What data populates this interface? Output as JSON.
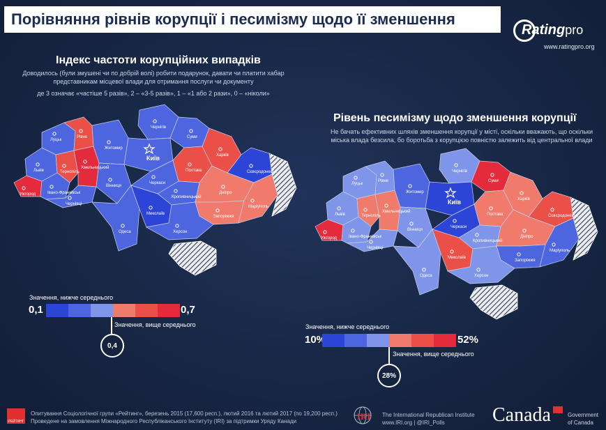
{
  "title": "Порівняння рівнів корупції і песимізму щодо її зменшення",
  "logo": {
    "brand": "Rating",
    "brand_suffix": "pro",
    "url": "www.ratingpro.org"
  },
  "left": {
    "heading": "Індекс частоти корупційних випадків",
    "subtitle": "Доводилось (були змушені чи по добрій волі) робити подарунок, давати чи платити хабар представникам місцевої влади для отримання послуги чи документу",
    "scale_note": "де 3 означає «частіше 5 разів», 2 – «3-5 разів», 1 – «1 або 2 рази», 0 – «ніколи»",
    "legend": {
      "below_label": "Значення, нижче середнього",
      "above_label": "Значення, вище середнього",
      "min": "0,1",
      "max": "0,7",
      "mid": "0,4",
      "colors": [
        "#2c45d6",
        "#4d66e0",
        "#7f95ea",
        "#f07a6c",
        "#ea5048",
        "#e32b3c"
      ]
    },
    "regions": [
      {
        "name": "Луцьк",
        "value": 1
      },
      {
        "name": "Рівне",
        "value": 4
      },
      {
        "name": "Житомир",
        "value": 1
      },
      {
        "name": "Чернігів",
        "value": 1
      },
      {
        "name": "Суми",
        "value": 1
      },
      {
        "name": "Львів",
        "value": 1
      },
      {
        "name": "Тернопіль",
        "value": 4
      },
      {
        "name": "Хмельницький",
        "value": 5
      },
      {
        "name": "Вінниця",
        "value": 1
      },
      {
        "name": "Київ",
        "value": 1
      },
      {
        "name": "Черкаси",
        "value": 1
      },
      {
        "name": "Полтава",
        "value": 4
      },
      {
        "name": "Харків",
        "value": 4
      },
      {
        "name": "Сєвєродонецьк",
        "value": 0
      },
      {
        "name": "Ужгород",
        "value": 5
      },
      {
        "name": "Івано-Франківськ",
        "value": 1
      },
      {
        "name": "Чернівці",
        "value": 1
      },
      {
        "name": "Кропивницький",
        "value": 1
      },
      {
        "name": "Дніпро",
        "value": 3
      },
      {
        "name": "Запоріжжя",
        "value": 3
      },
      {
        "name": "Маріуполь",
        "value": 3
      },
      {
        "name": "Одеса",
        "value": 1
      },
      {
        "name": "Миколаїв",
        "value": 0
      },
      {
        "name": "Херсон",
        "value": 1
      }
    ]
  },
  "right": {
    "heading": "Рівень песимізму щодо зменшення корупції",
    "subtitle": "Не бачать ефективних шляхів зменшення корупції у місті, оскільки вважають, що оскільки міська влада безсила, бо боротьба з корупцією повністю залежить від центральної влади",
    "legend": {
      "below_label": "Значення, нижче середнього",
      "above_label": "Значення, вище середнього",
      "min": "10%",
      "max": "52%",
      "mid": "28%",
      "colors": [
        "#2c45d6",
        "#4d66e0",
        "#7f95ea",
        "#f07a6c",
        "#ea5048",
        "#e32b3c"
      ]
    },
    "regions": [
      {
        "name": "Луцьк",
        "value": 2
      },
      {
        "name": "Рівне",
        "value": 2
      },
      {
        "name": "Житомир",
        "value": 1
      },
      {
        "name": "Чернігів",
        "value": 2
      },
      {
        "name": "Суми",
        "value": 5
      },
      {
        "name": "Львів",
        "value": 2
      },
      {
        "name": "Тернопіль",
        "value": 3
      },
      {
        "name": "Хмельницький",
        "value": 3
      },
      {
        "name": "Вінниця",
        "value": 2
      },
      {
        "name": "Київ",
        "value": 0
      },
      {
        "name": "Черкаси",
        "value": 0
      },
      {
        "name": "Полтава",
        "value": 3
      },
      {
        "name": "Харків",
        "value": 3
      },
      {
        "name": "Сєвєродонецьк",
        "value": 4
      },
      {
        "name": "Ужгород",
        "value": 5
      },
      {
        "name": "Івано-Франківськ",
        "value": 2
      },
      {
        "name": "Чернівці",
        "value": 2
      },
      {
        "name": "Кропивницький",
        "value": 2
      },
      {
        "name": "Дніпро",
        "value": 3
      },
      {
        "name": "Запоріжжя",
        "value": 1
      },
      {
        "name": "Маріуполь",
        "value": 1
      },
      {
        "name": "Одеса",
        "value": 2
      },
      {
        "name": "Миколаїв",
        "value": 4
      },
      {
        "name": "Херсон",
        "value": 2
      }
    ]
  },
  "footer": {
    "logo_label": "РЕЙТИНГ",
    "line1": "Опитування Соціологічної групи «Рейтинг», березень 2015 (17,600 респ.), лютий 2016 та лютий 2017 (по 19,200 респ.)",
    "line2": "Проведене на замовлення Міжнародного Республіканського Інституту (IRI) за підтримки Уряду Канади",
    "iri_line1": "The International Republican Institute",
    "iri_line2": "www.IRI.org | @IRI_Polls",
    "iri_logo": "IRI",
    "canada": "Canada",
    "gov_line1": "Government",
    "gov_line2": "of Canada"
  }
}
